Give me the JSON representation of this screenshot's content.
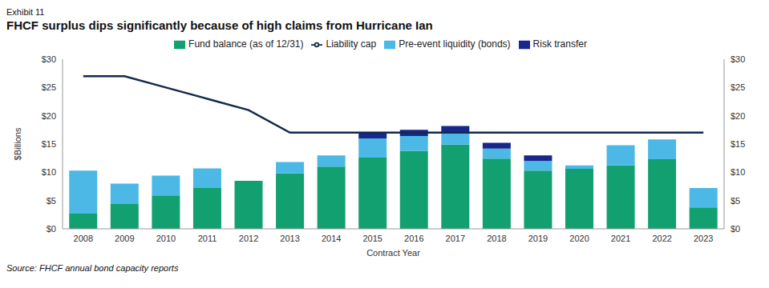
{
  "chart_data": {
    "type": "bar",
    "exhibit": "Exhibit 11",
    "title": "FHCF surplus dips significantly because of high claims from Hurricane Ian",
    "source": "Source: FHCF annual bond capacity reports",
    "x_label": "Contract Year",
    "y_label": "$Billions",
    "categories": [
      "2008",
      "2009",
      "2010",
      "2011",
      "2012",
      "2013",
      "2014",
      "2015",
      "2016",
      "2017",
      "2018",
      "2019",
      "2020",
      "2021",
      "2022",
      "2023"
    ],
    "stacked": true,
    "legend": "top",
    "grid": false,
    "ylim": [
      0,
      30
    ],
    "yticks": [
      {
        "value": 0,
        "label": "$0"
      },
      {
        "value": 5,
        "label": "$5"
      },
      {
        "value": 10,
        "label": "$10"
      },
      {
        "value": 15,
        "label": "$15"
      },
      {
        "value": 20,
        "label": "$20"
      },
      {
        "value": 25,
        "label": "$25"
      },
      {
        "value": 30,
        "label": "$30"
      }
    ],
    "y2lim": [
      0,
      30
    ],
    "y2ticks": [
      {
        "value": 0,
        "label": "$0"
      },
      {
        "value": 5,
        "label": "$5"
      },
      {
        "value": 10,
        "label": "$10"
      },
      {
        "value": 15,
        "label": "$15"
      },
      {
        "value": 20,
        "label": "$20"
      },
      {
        "value": 25,
        "label": "$25"
      },
      {
        "value": 30,
        "label": "$30"
      }
    ],
    "series": [
      {
        "name": "Fund balance (as of 12/31)",
        "type": "bar",
        "color": "#12a070",
        "values": [
          2.7,
          4.4,
          5.9,
          7.2,
          8.5,
          9.8,
          11.0,
          12.6,
          13.8,
          14.9,
          12.4,
          10.3,
          10.6,
          11.2,
          12.3,
          3.8
        ]
      },
      {
        "name": "Pre-event liquidity (bonds)",
        "type": "bar",
        "color": "#4cb8e6",
        "values": [
          7.6,
          3.6,
          3.5,
          3.5,
          0,
          2.0,
          2.0,
          3.4,
          2.6,
          2.0,
          1.8,
          1.7,
          0.6,
          3.6,
          3.5,
          3.4
        ]
      },
      {
        "name": "Risk transfer",
        "type": "bar",
        "color": "#17278a",
        "values": [
          0,
          0,
          0,
          0,
          0,
          0,
          0,
          1.0,
          1.1,
          1.3,
          1.0,
          1.0,
          0,
          0,
          0,
          0
        ]
      },
      {
        "name": "Liability cap",
        "type": "line",
        "axis": "y2",
        "color": "#13294b",
        "values": [
          27,
          27,
          25,
          23,
          21,
          17,
          17,
          17,
          17,
          17,
          17,
          17,
          17,
          17,
          17,
          17
        ]
      }
    ]
  }
}
